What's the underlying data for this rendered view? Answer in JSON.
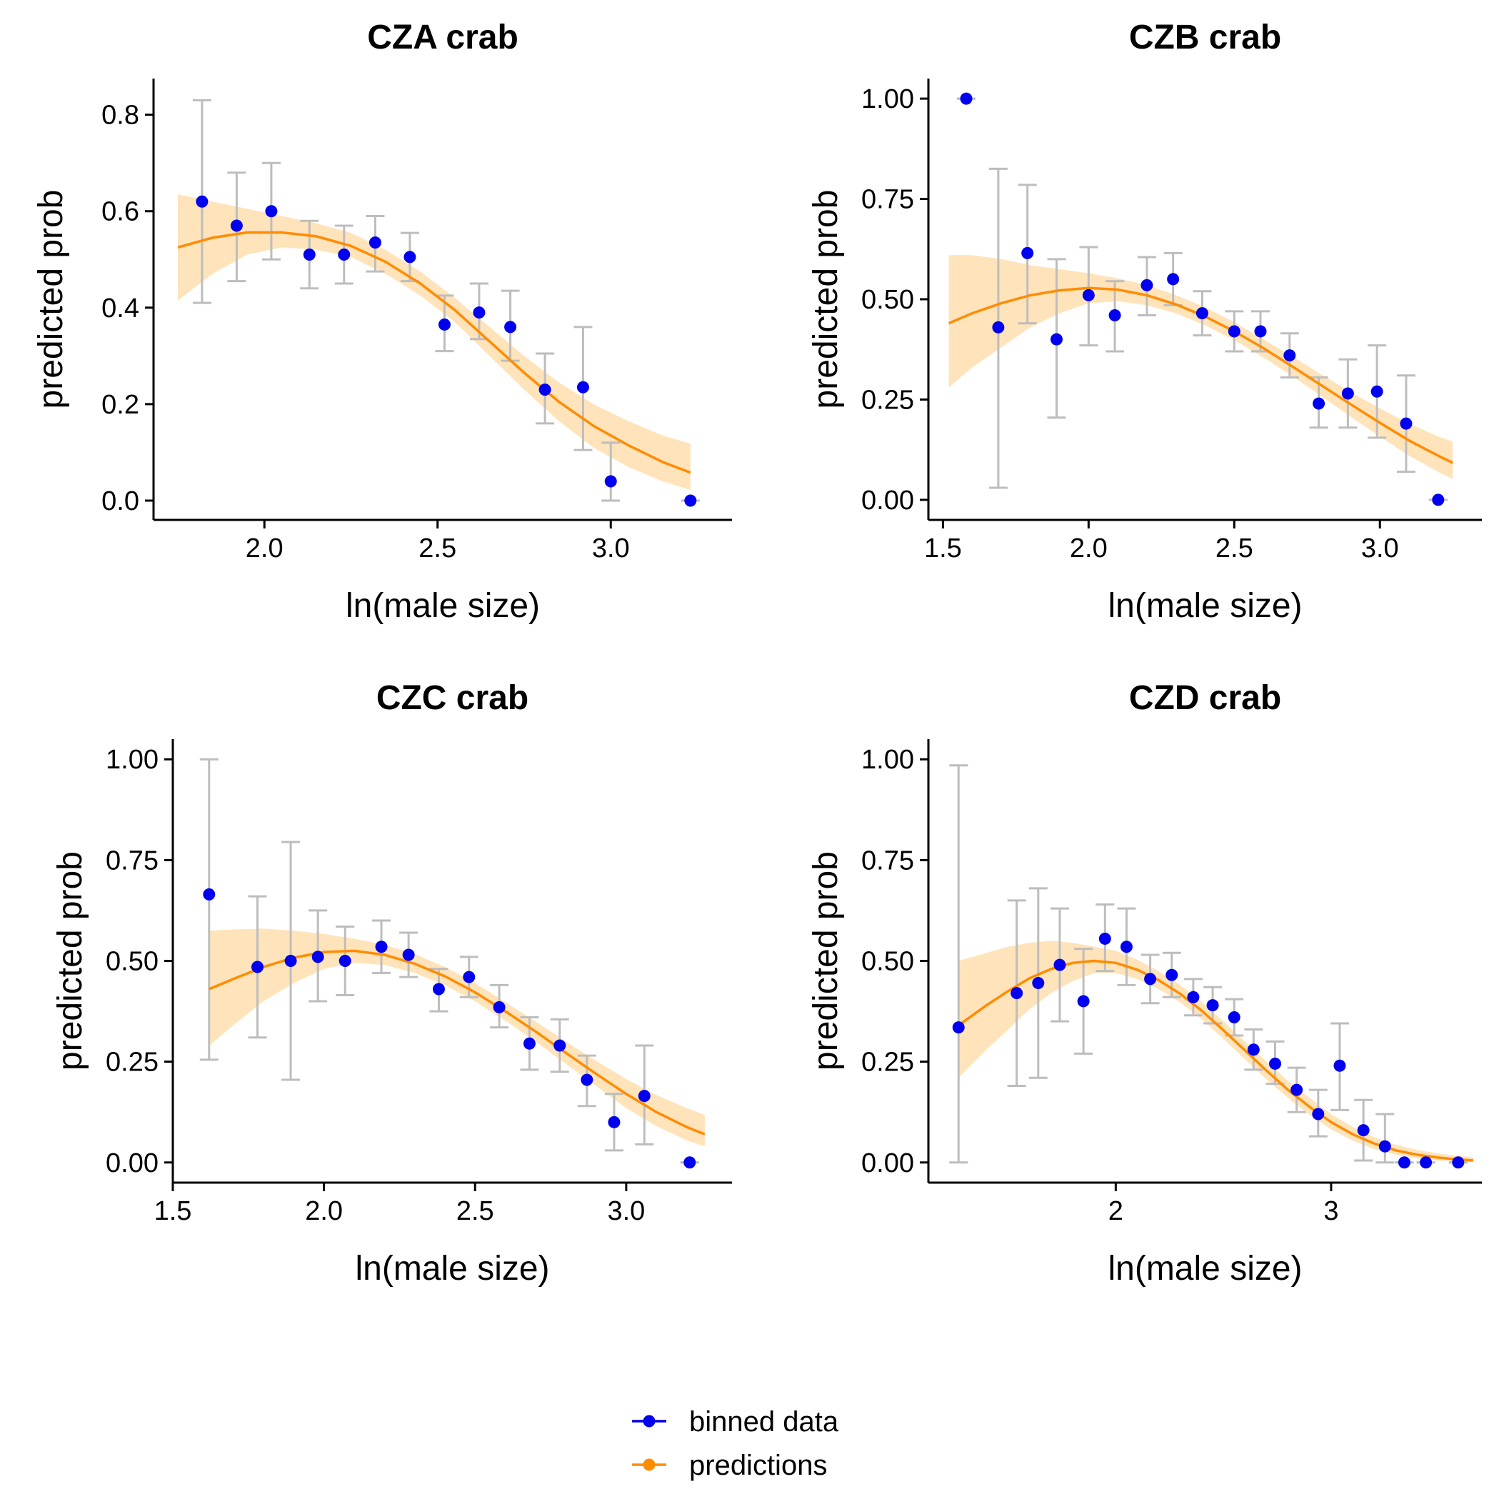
{
  "colors": {
    "points": "#0000ee",
    "line": "#ff8c00",
    "band": "#ffdeae",
    "errorbar": "#bdbdbd",
    "axis": "#000000"
  },
  "legend": {
    "position": "bottom",
    "items": [
      {
        "label": "binned data",
        "color": "#0000ee"
      },
      {
        "label": "predictions",
        "color": "#ff8c00"
      }
    ]
  },
  "chart_data": [
    {
      "type": "scatter",
      "title": "CZA crab",
      "xlabel": "ln(male size)",
      "ylabel": "predicted prob",
      "xlim": [
        1.68,
        3.35
      ],
      "ylim": [
        -0.04,
        0.875
      ],
      "xticks": [
        2.0,
        2.5,
        3.0
      ],
      "xtick_labels": [
        "2.0",
        "2.5",
        "3.0"
      ],
      "yticks": [
        0.0,
        0.2,
        0.4,
        0.6,
        0.8
      ],
      "ytick_labels": [
        "0.0",
        "0.2",
        "0.4",
        "0.6",
        "0.8"
      ],
      "grid": false,
      "binned": [
        {
          "x": 1.82,
          "y": 0.62,
          "lo": 0.41,
          "hi": 0.83
        },
        {
          "x": 1.92,
          "y": 0.57,
          "lo": 0.455,
          "hi": 0.68
        },
        {
          "x": 2.02,
          "y": 0.6,
          "lo": 0.5,
          "hi": 0.7
        },
        {
          "x": 2.13,
          "y": 0.51,
          "lo": 0.44,
          "hi": 0.58
        },
        {
          "x": 2.23,
          "y": 0.51,
          "lo": 0.45,
          "hi": 0.57
        },
        {
          "x": 2.32,
          "y": 0.535,
          "lo": 0.475,
          "hi": 0.59
        },
        {
          "x": 2.42,
          "y": 0.505,
          "lo": 0.455,
          "hi": 0.555
        },
        {
          "x": 2.52,
          "y": 0.365,
          "lo": 0.31,
          "hi": 0.425
        },
        {
          "x": 2.62,
          "y": 0.39,
          "lo": 0.335,
          "hi": 0.45
        },
        {
          "x": 2.71,
          "y": 0.36,
          "lo": 0.29,
          "hi": 0.435
        },
        {
          "x": 2.81,
          "y": 0.23,
          "lo": 0.16,
          "hi": 0.305
        },
        {
          "x": 2.92,
          "y": 0.235,
          "lo": 0.105,
          "hi": 0.36
        },
        {
          "x": 3.0,
          "y": 0.04,
          "lo": 0.0,
          "hi": 0.12
        },
        {
          "x": 3.23,
          "y": 0.0,
          "lo": 0.0,
          "hi": 0.0
        }
      ],
      "predictions": [
        {
          "x": 1.75,
          "y": 0.525,
          "lo": 0.415,
          "hi": 0.635
        },
        {
          "x": 1.85,
          "y": 0.545,
          "lo": 0.47,
          "hi": 0.62
        },
        {
          "x": 1.95,
          "y": 0.556,
          "lo": 0.51,
          "hi": 0.605
        },
        {
          "x": 2.05,
          "y": 0.556,
          "lo": 0.525,
          "hi": 0.59
        },
        {
          "x": 2.15,
          "y": 0.548,
          "lo": 0.52,
          "hi": 0.575
        },
        {
          "x": 2.25,
          "y": 0.528,
          "lo": 0.505,
          "hi": 0.555
        },
        {
          "x": 2.35,
          "y": 0.495,
          "lo": 0.47,
          "hi": 0.52
        },
        {
          "x": 2.45,
          "y": 0.45,
          "lo": 0.425,
          "hi": 0.475
        },
        {
          "x": 2.55,
          "y": 0.395,
          "lo": 0.37,
          "hi": 0.42
        },
        {
          "x": 2.65,
          "y": 0.33,
          "lo": 0.3,
          "hi": 0.36
        },
        {
          "x": 2.75,
          "y": 0.265,
          "lo": 0.23,
          "hi": 0.3
        },
        {
          "x": 2.85,
          "y": 0.205,
          "lo": 0.165,
          "hi": 0.245
        },
        {
          "x": 2.95,
          "y": 0.155,
          "lo": 0.11,
          "hi": 0.2
        },
        {
          "x": 3.05,
          "y": 0.115,
          "lo": 0.07,
          "hi": 0.165
        },
        {
          "x": 3.15,
          "y": 0.08,
          "lo": 0.04,
          "hi": 0.135
        },
        {
          "x": 3.23,
          "y": 0.058,
          "lo": 0.022,
          "hi": 0.118
        }
      ]
    },
    {
      "type": "scatter",
      "title": "CZB crab",
      "xlabel": "ln(male size)",
      "ylabel": "predicted prob",
      "xlim": [
        1.45,
        3.35
      ],
      "ylim": [
        -0.05,
        1.05
      ],
      "xticks": [
        1.5,
        2.0,
        2.5,
        3.0
      ],
      "xtick_labels": [
        "1.5",
        "2.0",
        "2.5",
        "3.0"
      ],
      "yticks": [
        0.0,
        0.25,
        0.5,
        0.75,
        1.0
      ],
      "ytick_labels": [
        "0.00",
        "0.25",
        "0.50",
        "0.75",
        "1.00"
      ],
      "grid": false,
      "binned": [
        {
          "x": 1.58,
          "y": 1.0,
          "lo": 1.0,
          "hi": 1.0
        },
        {
          "x": 1.69,
          "y": 0.43,
          "lo": 0.03,
          "hi": 0.825
        },
        {
          "x": 1.79,
          "y": 0.615,
          "lo": 0.44,
          "hi": 0.785
        },
        {
          "x": 1.89,
          "y": 0.4,
          "lo": 0.205,
          "hi": 0.6
        },
        {
          "x": 2.0,
          "y": 0.51,
          "lo": 0.385,
          "hi": 0.63
        },
        {
          "x": 2.09,
          "y": 0.46,
          "lo": 0.37,
          "hi": 0.545
        },
        {
          "x": 2.2,
          "y": 0.535,
          "lo": 0.46,
          "hi": 0.605
        },
        {
          "x": 2.29,
          "y": 0.55,
          "lo": 0.485,
          "hi": 0.615
        },
        {
          "x": 2.39,
          "y": 0.465,
          "lo": 0.41,
          "hi": 0.52
        },
        {
          "x": 2.5,
          "y": 0.42,
          "lo": 0.37,
          "hi": 0.47
        },
        {
          "x": 2.59,
          "y": 0.42,
          "lo": 0.37,
          "hi": 0.47
        },
        {
          "x": 2.69,
          "y": 0.36,
          "lo": 0.305,
          "hi": 0.415
        },
        {
          "x": 2.79,
          "y": 0.24,
          "lo": 0.18,
          "hi": 0.305
        },
        {
          "x": 2.89,
          "y": 0.265,
          "lo": 0.18,
          "hi": 0.35
        },
        {
          "x": 2.99,
          "y": 0.27,
          "lo": 0.155,
          "hi": 0.385
        },
        {
          "x": 3.09,
          "y": 0.19,
          "lo": 0.07,
          "hi": 0.31
        },
        {
          "x": 3.2,
          "y": 0.0,
          "lo": 0.0,
          "hi": 0.0
        }
      ],
      "predictions": [
        {
          "x": 1.52,
          "y": 0.44,
          "lo": 0.28,
          "hi": 0.61
        },
        {
          "x": 1.6,
          "y": 0.465,
          "lo": 0.33,
          "hi": 0.61
        },
        {
          "x": 1.7,
          "y": 0.49,
          "lo": 0.38,
          "hi": 0.6
        },
        {
          "x": 1.8,
          "y": 0.51,
          "lo": 0.43,
          "hi": 0.585
        },
        {
          "x": 1.9,
          "y": 0.522,
          "lo": 0.465,
          "hi": 0.575
        },
        {
          "x": 2.0,
          "y": 0.528,
          "lo": 0.49,
          "hi": 0.565
        },
        {
          "x": 2.1,
          "y": 0.524,
          "lo": 0.495,
          "hi": 0.552
        },
        {
          "x": 2.2,
          "y": 0.51,
          "lo": 0.485,
          "hi": 0.535
        },
        {
          "x": 2.3,
          "y": 0.487,
          "lo": 0.465,
          "hi": 0.51
        },
        {
          "x": 2.4,
          "y": 0.457,
          "lo": 0.435,
          "hi": 0.48
        },
        {
          "x": 2.5,
          "y": 0.42,
          "lo": 0.398,
          "hi": 0.443
        },
        {
          "x": 2.6,
          "y": 0.378,
          "lo": 0.355,
          "hi": 0.4
        },
        {
          "x": 2.7,
          "y": 0.332,
          "lo": 0.308,
          "hi": 0.357
        },
        {
          "x": 2.8,
          "y": 0.285,
          "lo": 0.258,
          "hi": 0.312
        },
        {
          "x": 2.9,
          "y": 0.238,
          "lo": 0.207,
          "hi": 0.268
        },
        {
          "x": 3.0,
          "y": 0.192,
          "lo": 0.158,
          "hi": 0.228
        },
        {
          "x": 3.1,
          "y": 0.148,
          "lo": 0.11,
          "hi": 0.19
        },
        {
          "x": 3.2,
          "y": 0.11,
          "lo": 0.07,
          "hi": 0.158
        },
        {
          "x": 3.25,
          "y": 0.092,
          "lo": 0.052,
          "hi": 0.145
        }
      ]
    },
    {
      "type": "scatter",
      "title": "CZC crab",
      "xlabel": "ln(male size)",
      "ylabel": "predicted prob",
      "xlim": [
        1.5,
        3.35
      ],
      "ylim": [
        -0.05,
        1.05
      ],
      "xticks": [
        1.5,
        2.0,
        2.5,
        3.0
      ],
      "xtick_labels": [
        "1.5",
        "2.0",
        "2.5",
        "3.0"
      ],
      "yticks": [
        0.0,
        0.25,
        0.5,
        0.75,
        1.0
      ],
      "ytick_labels": [
        "0.00",
        "0.25",
        "0.50",
        "0.75",
        "1.00"
      ],
      "grid": false,
      "binned": [
        {
          "x": 1.62,
          "y": 0.665,
          "lo": 0.255,
          "hi": 1.0
        },
        {
          "x": 1.78,
          "y": 0.485,
          "lo": 0.31,
          "hi": 0.66
        },
        {
          "x": 1.89,
          "y": 0.5,
          "lo": 0.205,
          "hi": 0.795
        },
        {
          "x": 1.98,
          "y": 0.51,
          "lo": 0.4,
          "hi": 0.625
        },
        {
          "x": 2.07,
          "y": 0.5,
          "lo": 0.415,
          "hi": 0.585
        },
        {
          "x": 2.19,
          "y": 0.535,
          "lo": 0.47,
          "hi": 0.6
        },
        {
          "x": 2.28,
          "y": 0.515,
          "lo": 0.46,
          "hi": 0.57
        },
        {
          "x": 2.38,
          "y": 0.43,
          "lo": 0.375,
          "hi": 0.48
        },
        {
          "x": 2.48,
          "y": 0.46,
          "lo": 0.41,
          "hi": 0.51
        },
        {
          "x": 2.58,
          "y": 0.385,
          "lo": 0.335,
          "hi": 0.44
        },
        {
          "x": 2.68,
          "y": 0.295,
          "lo": 0.23,
          "hi": 0.36
        },
        {
          "x": 2.78,
          "y": 0.29,
          "lo": 0.225,
          "hi": 0.355
        },
        {
          "x": 2.87,
          "y": 0.205,
          "lo": 0.14,
          "hi": 0.265
        },
        {
          "x": 2.96,
          "y": 0.1,
          "lo": 0.03,
          "hi": 0.17
        },
        {
          "x": 3.06,
          "y": 0.165,
          "lo": 0.045,
          "hi": 0.29
        },
        {
          "x": 3.21,
          "y": 0.0,
          "lo": 0.0,
          "hi": 0.0
        }
      ],
      "predictions": [
        {
          "x": 1.62,
          "y": 0.43,
          "lo": 0.29,
          "hi": 0.575
        },
        {
          "x": 1.7,
          "y": 0.455,
          "lo": 0.34,
          "hi": 0.578
        },
        {
          "x": 1.8,
          "y": 0.485,
          "lo": 0.4,
          "hi": 0.58
        },
        {
          "x": 1.9,
          "y": 0.508,
          "lo": 0.445,
          "hi": 0.575
        },
        {
          "x": 2.0,
          "y": 0.522,
          "lo": 0.48,
          "hi": 0.567
        },
        {
          "x": 2.1,
          "y": 0.525,
          "lo": 0.495,
          "hi": 0.555
        },
        {
          "x": 2.2,
          "y": 0.515,
          "lo": 0.49,
          "hi": 0.54
        },
        {
          "x": 2.3,
          "y": 0.493,
          "lo": 0.47,
          "hi": 0.517
        },
        {
          "x": 2.4,
          "y": 0.462,
          "lo": 0.44,
          "hi": 0.485
        },
        {
          "x": 2.5,
          "y": 0.422,
          "lo": 0.4,
          "hi": 0.445
        },
        {
          "x": 2.6,
          "y": 0.375,
          "lo": 0.352,
          "hi": 0.398
        },
        {
          "x": 2.7,
          "y": 0.325,
          "lo": 0.3,
          "hi": 0.35
        },
        {
          "x": 2.8,
          "y": 0.272,
          "lo": 0.245,
          "hi": 0.3
        },
        {
          "x": 2.9,
          "y": 0.22,
          "lo": 0.19,
          "hi": 0.252
        },
        {
          "x": 3.0,
          "y": 0.17,
          "lo": 0.135,
          "hi": 0.207
        },
        {
          "x": 3.1,
          "y": 0.125,
          "lo": 0.09,
          "hi": 0.167
        },
        {
          "x": 3.2,
          "y": 0.088,
          "lo": 0.055,
          "hi": 0.135
        },
        {
          "x": 3.26,
          "y": 0.07,
          "lo": 0.04,
          "hi": 0.118
        }
      ]
    },
    {
      "type": "scatter",
      "title": "CZD crab",
      "xlabel": "ln(male size)",
      "ylabel": "predicted prob",
      "xlim": [
        1.13,
        3.7
      ],
      "ylim": [
        -0.05,
        1.05
      ],
      "xticks": [
        2,
        3
      ],
      "xtick_labels": [
        "2",
        "3"
      ],
      "yticks": [
        0.0,
        0.25,
        0.5,
        0.75,
        1.0
      ],
      "ytick_labels": [
        "0.00",
        "0.25",
        "0.50",
        "0.75",
        "1.00"
      ],
      "grid": false,
      "binned": [
        {
          "x": 1.27,
          "y": 0.335,
          "lo": 0.0,
          "hi": 0.985
        },
        {
          "x": 1.54,
          "y": 0.42,
          "lo": 0.19,
          "hi": 0.65
        },
        {
          "x": 1.64,
          "y": 0.445,
          "lo": 0.21,
          "hi": 0.68
        },
        {
          "x": 1.74,
          "y": 0.49,
          "lo": 0.35,
          "hi": 0.63
        },
        {
          "x": 1.85,
          "y": 0.4,
          "lo": 0.27,
          "hi": 0.53
        },
        {
          "x": 1.95,
          "y": 0.555,
          "lo": 0.475,
          "hi": 0.64
        },
        {
          "x": 2.05,
          "y": 0.535,
          "lo": 0.44,
          "hi": 0.63
        },
        {
          "x": 2.16,
          "y": 0.455,
          "lo": 0.395,
          "hi": 0.515
        },
        {
          "x": 2.26,
          "y": 0.465,
          "lo": 0.41,
          "hi": 0.52
        },
        {
          "x": 2.36,
          "y": 0.41,
          "lo": 0.365,
          "hi": 0.455
        },
        {
          "x": 2.45,
          "y": 0.39,
          "lo": 0.345,
          "hi": 0.435
        },
        {
          "x": 2.55,
          "y": 0.36,
          "lo": 0.315,
          "hi": 0.405
        },
        {
          "x": 2.64,
          "y": 0.28,
          "lo": 0.23,
          "hi": 0.33
        },
        {
          "x": 2.74,
          "y": 0.245,
          "lo": 0.195,
          "hi": 0.3
        },
        {
          "x": 2.84,
          "y": 0.18,
          "lo": 0.125,
          "hi": 0.235
        },
        {
          "x": 2.94,
          "y": 0.12,
          "lo": 0.065,
          "hi": 0.18
        },
        {
          "x": 3.04,
          "y": 0.24,
          "lo": 0.13,
          "hi": 0.345
        },
        {
          "x": 3.15,
          "y": 0.08,
          "lo": 0.005,
          "hi": 0.155
        },
        {
          "x": 3.25,
          "y": 0.04,
          "lo": 0.0,
          "hi": 0.12
        },
        {
          "x": 3.34,
          "y": 0.0,
          "lo": 0.0,
          "hi": 0.0
        },
        {
          "x": 3.44,
          "y": 0.0,
          "lo": 0.0,
          "hi": 0.0
        },
        {
          "x": 3.59,
          "y": 0.0,
          "lo": 0.0,
          "hi": 0.0
        }
      ],
      "predictions": [
        {
          "x": 1.27,
          "y": 0.34,
          "lo": 0.21,
          "hi": 0.5
        },
        {
          "x": 1.4,
          "y": 0.39,
          "lo": 0.28,
          "hi": 0.52
        },
        {
          "x": 1.5,
          "y": 0.425,
          "lo": 0.33,
          "hi": 0.535
        },
        {
          "x": 1.6,
          "y": 0.457,
          "lo": 0.38,
          "hi": 0.545
        },
        {
          "x": 1.7,
          "y": 0.48,
          "lo": 0.42,
          "hi": 0.55
        },
        {
          "x": 1.8,
          "y": 0.495,
          "lo": 0.45,
          "hi": 0.545
        },
        {
          "x": 1.9,
          "y": 0.5,
          "lo": 0.47,
          "hi": 0.535
        },
        {
          "x": 2.0,
          "y": 0.495,
          "lo": 0.47,
          "hi": 0.525
        },
        {
          "x": 2.1,
          "y": 0.478,
          "lo": 0.455,
          "hi": 0.503
        },
        {
          "x": 2.2,
          "y": 0.452,
          "lo": 0.43,
          "hi": 0.474
        },
        {
          "x": 2.3,
          "y": 0.418,
          "lo": 0.397,
          "hi": 0.44
        },
        {
          "x": 2.4,
          "y": 0.376,
          "lo": 0.355,
          "hi": 0.398
        },
        {
          "x": 2.5,
          "y": 0.328,
          "lo": 0.307,
          "hi": 0.35
        },
        {
          "x": 2.6,
          "y": 0.278,
          "lo": 0.256,
          "hi": 0.3
        },
        {
          "x": 2.7,
          "y": 0.228,
          "lo": 0.206,
          "hi": 0.25
        },
        {
          "x": 2.8,
          "y": 0.18,
          "lo": 0.16,
          "hi": 0.202
        },
        {
          "x": 2.9,
          "y": 0.138,
          "lo": 0.118,
          "hi": 0.16
        },
        {
          "x": 3.0,
          "y": 0.1,
          "lo": 0.082,
          "hi": 0.12
        },
        {
          "x": 3.1,
          "y": 0.07,
          "lo": 0.054,
          "hi": 0.088
        },
        {
          "x": 3.2,
          "y": 0.047,
          "lo": 0.033,
          "hi": 0.063
        },
        {
          "x": 3.3,
          "y": 0.03,
          "lo": 0.019,
          "hi": 0.044
        },
        {
          "x": 3.4,
          "y": 0.019,
          "lo": 0.01,
          "hi": 0.031
        },
        {
          "x": 3.5,
          "y": 0.012,
          "lo": 0.005,
          "hi": 0.022
        },
        {
          "x": 3.6,
          "y": 0.007,
          "lo": 0.002,
          "hi": 0.016
        },
        {
          "x": 3.66,
          "y": 0.005,
          "lo": 0.001,
          "hi": 0.013
        }
      ]
    }
  ]
}
